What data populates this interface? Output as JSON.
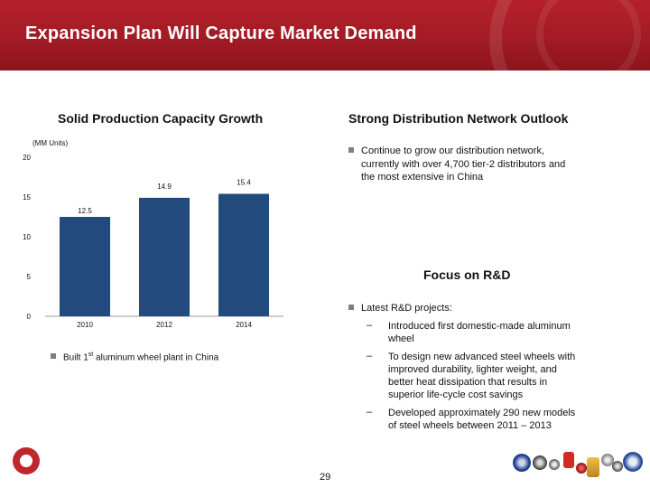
{
  "title": "Expansion Plan Will Capture Market Demand",
  "left_section": {
    "heading": "Solid Production Capacity Growth",
    "units": "(MM Units)",
    "bullet": "Built 1",
    "bullet_sup": "st",
    "bullet_rest": "aluminum  wheel plant in China"
  },
  "right_section": {
    "heading1": "Strong Distribution Network Outlook",
    "bullet1_line1": "Continue to grow our distribution network,",
    "bullet1_line2": "currently with over 4,700 tier-2 distributors and",
    "bullet1_line3": "the most extensive in China",
    "heading2": "Focus on R&D",
    "bullet2": "Latest R&D projects:",
    "sub_items": [
      {
        "dash": "–",
        "line1": "Introduced first domestic-made aluminum",
        "line2": "wheel"
      },
      {
        "dash": "–",
        "line1": "To design new advanced steel wheels with",
        "line2": "improved durability, lighter weight, and",
        "line3": "better heat dissipation that results in",
        "line4": "superior life-cycle cost savings"
      },
      {
        "dash": "–",
        "line1": "Developed approximately 290 new models",
        "line2": "of steel wheels between 2011 – 2013"
      }
    ]
  },
  "page_number": "29",
  "chart_data": {
    "type": "bar",
    "categories": [
      "2010",
      "2012",
      "2014"
    ],
    "values": [
      12.5,
      14.9,
      15.4
    ],
    "value_labels": [
      "12.5",
      "14.9",
      "15.4"
    ],
    "title": "Solid Production Capacity Growth",
    "ylabel": "(MM Units)",
    "ylim": [
      0,
      20
    ],
    "yticks": [
      0,
      5,
      10,
      15,
      20
    ],
    "bar_color": "#234a7c"
  },
  "colors": {
    "header": "#b6212b",
    "bar": "#234a7c"
  }
}
